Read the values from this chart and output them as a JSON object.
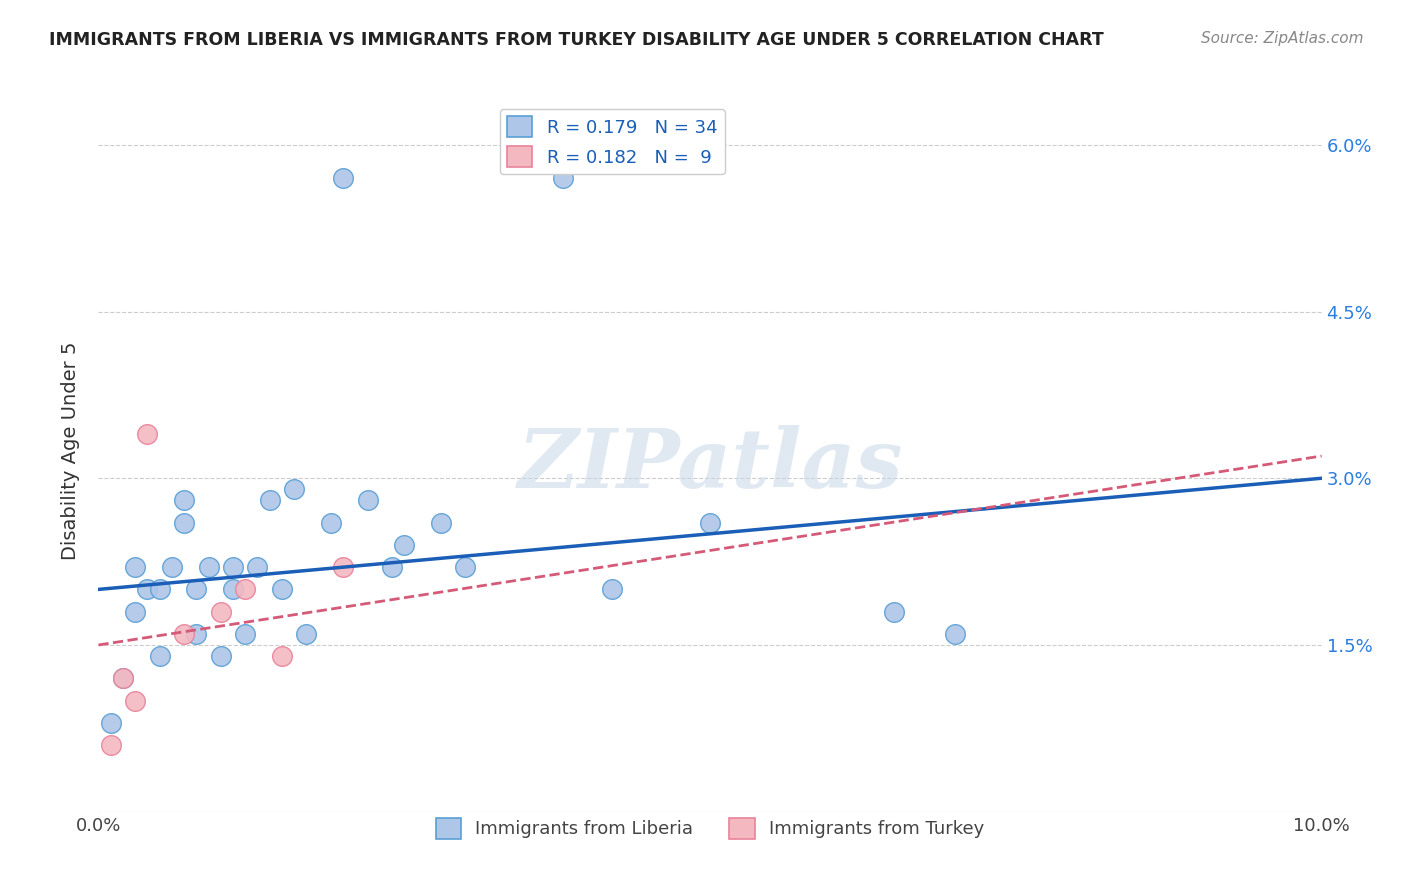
{
  "title": "IMMIGRANTS FROM LIBERIA VS IMMIGRANTS FROM TURKEY DISABILITY AGE UNDER 5 CORRELATION CHART",
  "source": "Source: ZipAtlas.com",
  "ylabel": "Disability Age Under 5",
  "xlim": [
    0.0,
    0.1
  ],
  "ylim": [
    0.0,
    0.065
  ],
  "xticks": [
    0.0,
    0.02,
    0.04,
    0.06,
    0.08,
    0.1
  ],
  "xticklabels": [
    "0.0%",
    "",
    "",
    "",
    "",
    "10.0%"
  ],
  "yticks": [
    0.0,
    0.015,
    0.03,
    0.045,
    0.06
  ],
  "yticklabels": [
    "",
    "1.5%",
    "3.0%",
    "4.5%",
    "6.0%"
  ],
  "liberia_color": "#aec6e8",
  "turkey_color": "#f4b8c1",
  "liberia_edge": "#5a9fd4",
  "turkey_edge": "#e8829a",
  "trend_liberia_color": "#1a5eb8",
  "trend_turkey_color": "#d45a78",
  "R_liberia": 0.179,
  "N_liberia": 34,
  "R_turkey": 0.182,
  "N_turkey": 9,
  "legend_label_liberia": "Immigrants from Liberia",
  "legend_label_turkey": "Immigrants from Turkey",
  "liberia_x": [
    0.001,
    0.002,
    0.003,
    0.003,
    0.004,
    0.005,
    0.005,
    0.006,
    0.007,
    0.007,
    0.008,
    0.008,
    0.009,
    0.01,
    0.011,
    0.011,
    0.012,
    0.013,
    0.014,
    0.015,
    0.016,
    0.017,
    0.019,
    0.02,
    0.022,
    0.024,
    0.025,
    0.028,
    0.03,
    0.038,
    0.042,
    0.05,
    0.065,
    0.07
  ],
  "liberia_y": [
    0.008,
    0.012,
    0.018,
    0.022,
    0.02,
    0.014,
    0.02,
    0.022,
    0.026,
    0.028,
    0.016,
    0.02,
    0.022,
    0.014,
    0.02,
    0.022,
    0.016,
    0.022,
    0.028,
    0.02,
    0.029,
    0.016,
    0.026,
    0.057,
    0.028,
    0.022,
    0.024,
    0.026,
    0.022,
    0.057,
    0.02,
    0.026,
    0.018,
    0.016
  ],
  "turkey_x": [
    0.001,
    0.002,
    0.003,
    0.004,
    0.007,
    0.01,
    0.012,
    0.015,
    0.02
  ],
  "turkey_y": [
    0.006,
    0.012,
    0.01,
    0.034,
    0.016,
    0.018,
    0.02,
    0.014,
    0.022
  ],
  "watermark_text": "ZIPatlas",
  "background_color": "#ffffff",
  "grid_color": "#cccccc"
}
